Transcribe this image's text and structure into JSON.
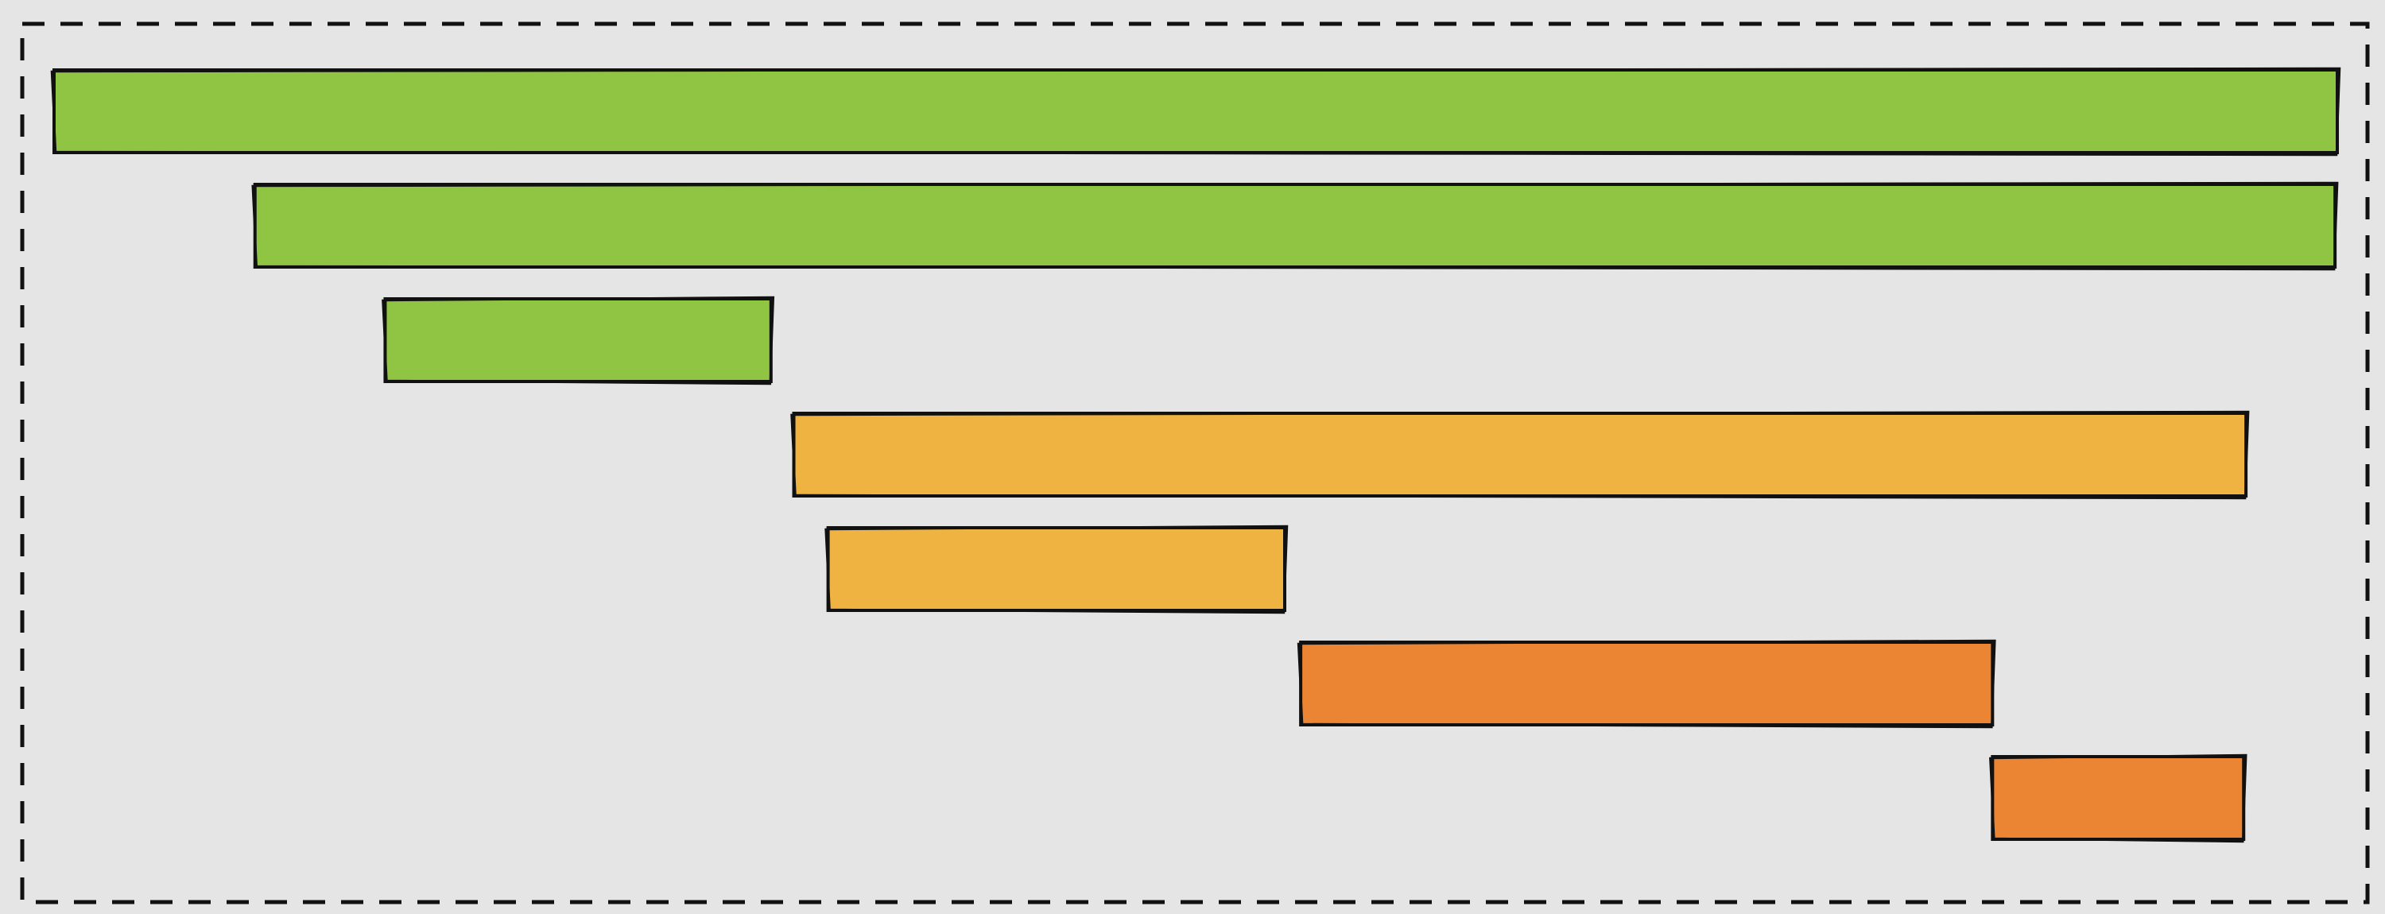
{
  "chart_data": {
    "type": "gantt",
    "title": "",
    "xlabel": "",
    "ylabel": "",
    "xlim": [
      0,
      100
    ],
    "grid": false,
    "legend": "none",
    "tasks": [
      {
        "start": 0.0,
        "end": 100.0,
        "group": "green"
      },
      {
        "start": 8.8,
        "end": 99.9,
        "group": "green"
      },
      {
        "start": 14.5,
        "end": 31.4,
        "group": "green"
      },
      {
        "start": 32.4,
        "end": 96.0,
        "group": "yellow"
      },
      {
        "start": 33.9,
        "end": 53.9,
        "group": "yellow"
      },
      {
        "start": 54.6,
        "end": 84.9,
        "group": "orange"
      },
      {
        "start": 84.9,
        "end": 95.9,
        "group": "orange"
      }
    ]
  },
  "colors": {
    "background": "#e5e5e5",
    "frame_stroke": "#111111",
    "green": "#8fc543",
    "yellow": "#efb341",
    "orange": "#ec8533",
    "outline": "#111111"
  }
}
